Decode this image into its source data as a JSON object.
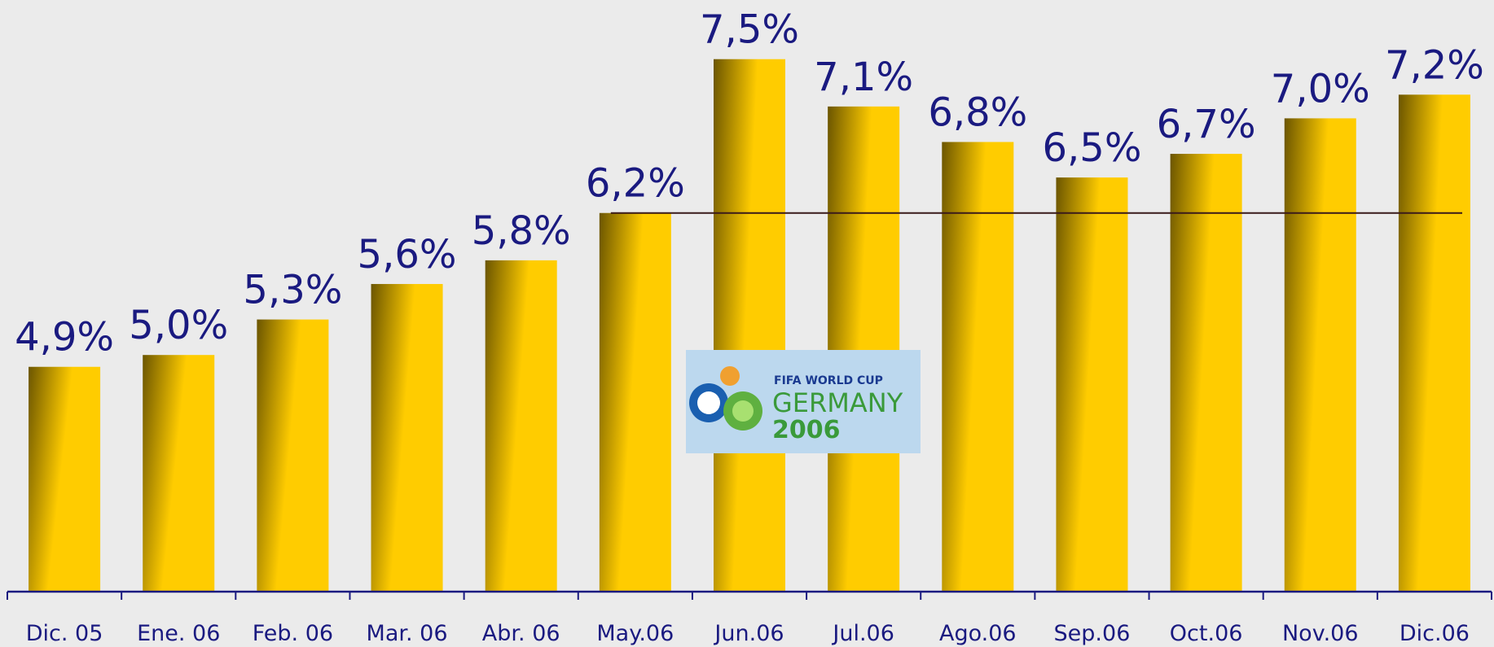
{
  "chart_data": {
    "type": "bar",
    "categories": [
      "Dic. 05",
      "Ene. 06",
      "Feb. 06",
      "Mar. 06",
      "Abr. 06",
      "May.06",
      "Jun.06",
      "Jul.06",
      "Ago.06",
      "Sep.06",
      "Oct.06",
      "Nov.06",
      "Dic.06"
    ],
    "values": [
      4.9,
      5.0,
      5.3,
      5.6,
      5.8,
      6.2,
      7.5,
      7.1,
      6.8,
      6.5,
      6.7,
      7.0,
      7.2
    ],
    "value_labels": [
      "4,9%",
      "5,0%",
      "5,3%",
      "5,6%",
      "5,8%",
      "6,2%",
      "7,5%",
      "7,1%",
      "6,8%",
      "6,5%",
      "6,7%",
      "7,0%",
      "7,2%"
    ],
    "color": "#ffcc00",
    "ylim": [
      3,
      8
    ],
    "reference_value": 6.2,
    "logo": {
      "line1": "FIFA WORLD CUP",
      "line2": "GERMANY",
      "line3": "2006"
    }
  }
}
